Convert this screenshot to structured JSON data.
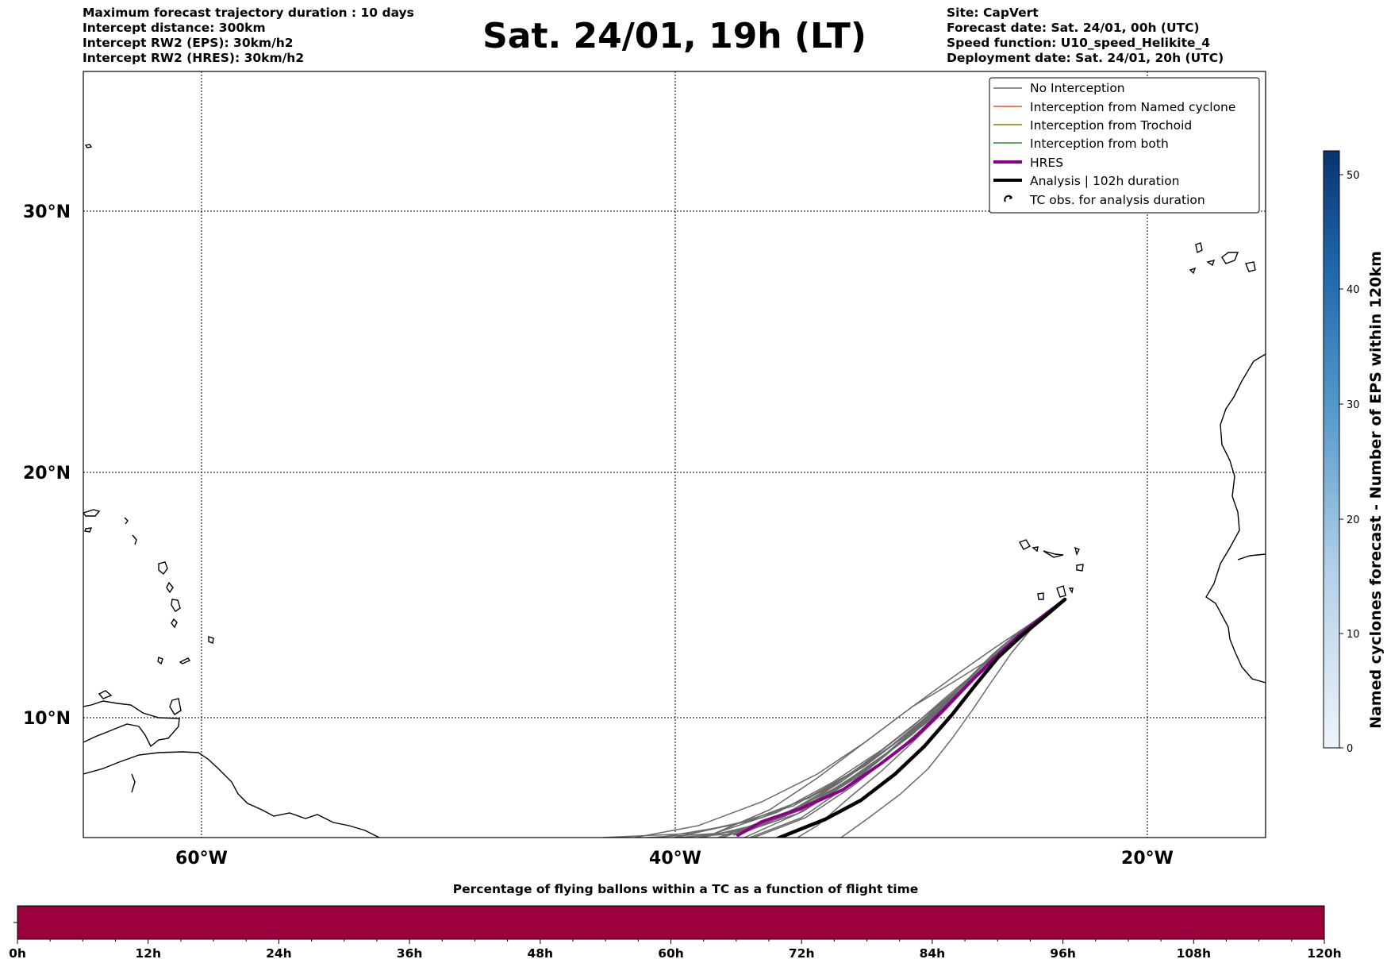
{
  "header": {
    "left_lines": [
      "Maximum forecast trajectory duration : 10 days",
      "Intercept distance: 300km",
      "Intercept RW2 (EPS):  30km/h2",
      "Intercept RW2 (HRES): 30km/h2"
    ],
    "title": "Sat. 24/01, 19h (LT)",
    "right_lines": [
      "Site: CapVert",
      "Forecast date: Sat. 24/01, 00h (UTC)",
      "Speed function: U10_speed_Helikite_4",
      "Deployment date: Sat. 24/01, 20h (UTC)"
    ]
  },
  "map": {
    "lon_labels": [
      "60°W",
      "40°W",
      "20°W"
    ],
    "lat_labels": [
      "30°N",
      "20°N",
      "10°N"
    ],
    "legend": [
      {
        "label": "No Interception",
        "color": "#6b6b6b",
        "style": "line-thin"
      },
      {
        "label": "Interception from Named cyclone",
        "color": "#e8572c",
        "style": "line-thin"
      },
      {
        "label": "Interception from Trochoid",
        "color": "#8a7d00",
        "style": "line-thin"
      },
      {
        "label": "Interception from both",
        "color": "#2e8b2e",
        "style": "line-thin"
      },
      {
        "label": "HRES",
        "color": "#8b008b",
        "style": "line-thick"
      },
      {
        "label": "Analysis | 102h duration",
        "color": "#000000",
        "style": "line-thick"
      },
      {
        "label": "TC obs. for analysis duration",
        "color": "#000000",
        "style": "cyclone-symbol"
      }
    ]
  },
  "colorbar": {
    "label": "Named cyclones forecast - Number of EPS within 120km",
    "ticks": [
      "0",
      "10",
      "20",
      "30",
      "40",
      "50"
    ],
    "color_low": "#e8f0f9",
    "color_high": "#083370"
  },
  "timebar": {
    "title": "Percentage of flying ballons within a TC as a function of flight time",
    "color": "#9b003c",
    "ticks": [
      "0h",
      "12h",
      "24h",
      "36h",
      "48h",
      "60h",
      "72h",
      "84h",
      "96h",
      "108h",
      "120h"
    ]
  }
}
